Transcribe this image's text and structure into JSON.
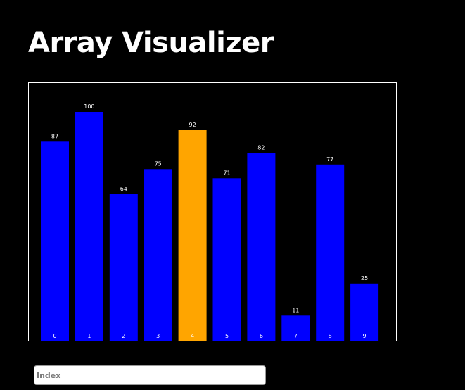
{
  "header": {
    "title": "Array Visualizer"
  },
  "chart_data": {
    "type": "bar",
    "categories": [
      "0",
      "1",
      "2",
      "3",
      "4",
      "5",
      "6",
      "7",
      "8",
      "9"
    ],
    "values": [
      87,
      100,
      64,
      75,
      92,
      71,
      82,
      11,
      77,
      25
    ],
    "ylim": [
      0,
      100
    ],
    "grid": false,
    "highlighted_index": 4,
    "colors": {
      "bar": "#0000ff",
      "highlight": "#ffa500"
    }
  },
  "index_input": {
    "placeholder": "Index",
    "value": ""
  }
}
